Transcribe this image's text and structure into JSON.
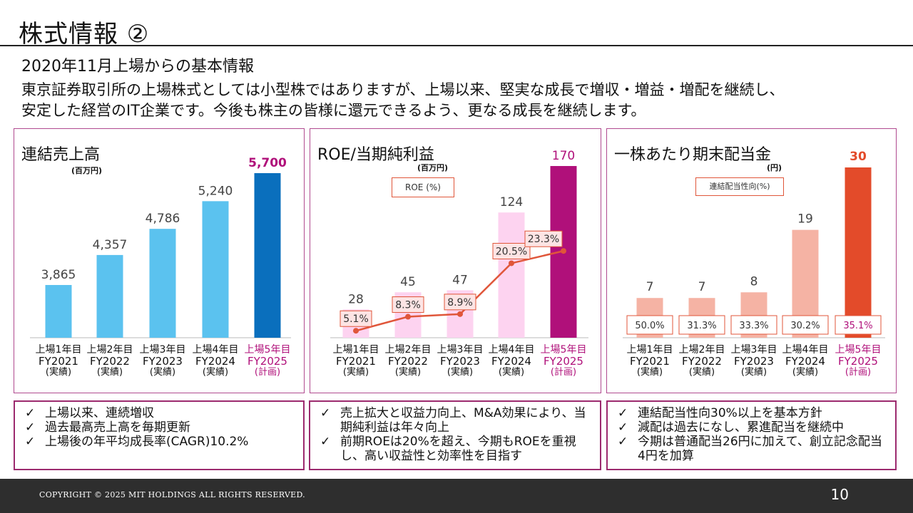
{
  "slide": {
    "title": "株式情報 ②",
    "subtitle": "2020年11月上場からの基本情報",
    "description_line1": "東京証券取引所の上場株式としては小型株ではありますが、上場以来、堅実な成長で増収・増益・増配を継続し、",
    "description_line2": "安定した経営のIT企業です。今後も株主の皆様に還元できるよう、更なる成長を継続します。"
  },
  "chart_data": [
    {
      "type": "bar",
      "title": "連結売上高",
      "unit": "(百万円)",
      "categories": [
        [
          "上場1年目",
          "FY2021",
          "(実績)"
        ],
        [
          "上場2年目",
          "FY2022",
          "(実績)"
        ],
        [
          "上場3年目",
          "FY2023",
          "(実績)"
        ],
        [
          "上場4年目",
          "FY2024",
          "(実績)"
        ],
        [
          "上場5年目",
          "FY2025",
          "(計画)"
        ]
      ],
      "values": [
        3865,
        4357,
        4786,
        5240,
        5700
      ],
      "labels": [
        "3,865",
        "4,357",
        "4,786",
        "5,240",
        "5,700"
      ],
      "colors": [
        "#5bc2ef",
        "#5bc2ef",
        "#5bc2ef",
        "#5bc2ef",
        "#0a6fbd"
      ],
      "ymin": 3000,
      "ymax": 5700
    },
    {
      "type": "bar+line",
      "title": "ROE/当期純利益",
      "unit": "(百万円)",
      "legend_label": "ROE (%)",
      "categories": [
        [
          "上場1年目",
          "FY2021",
          "(実績)"
        ],
        [
          "上場2年目",
          "FY2022",
          "(実績)"
        ],
        [
          "上場3年目",
          "FY2023",
          "(実績)"
        ],
        [
          "上場4年目",
          "FY2024",
          "(実績)"
        ],
        [
          "上場5年目",
          "FY2025",
          "(計画)"
        ]
      ],
      "values": [
        28,
        45,
        47,
        124,
        170
      ],
      "labels": [
        "28",
        "45",
        "47",
        "124",
        "170"
      ],
      "colors": [
        "#fdd3f0",
        "#fdd3f0",
        "#fdd3f0",
        "#fdd3f0",
        "#b0107a"
      ],
      "line_values": [
        5.1,
        8.3,
        8.9,
        20.5,
        23.3
      ],
      "line_labels": [
        "5.1%",
        "8.3%",
        "8.9%",
        "20.5%",
        "23.3%"
      ],
      "line_color": "#e0563a",
      "line_ymin": 4,
      "line_ymax": 30
    },
    {
      "type": "bar",
      "title": "一株あたり期末配当金",
      "unit": "(円)",
      "legend_label": "連結配当性向(%)",
      "categories": [
        [
          "上場1年目",
          "FY2021",
          "(実績)"
        ],
        [
          "上場2年目",
          "FY2022",
          "(実績)"
        ],
        [
          "上場3年目",
          "FY2023",
          "(実績)"
        ],
        [
          "上場4年目",
          "FY2024",
          "(実績)"
        ],
        [
          "上場5年目",
          "FY2025",
          "(計画)"
        ]
      ],
      "values": [
        7,
        7,
        8,
        19,
        30
      ],
      "labels": [
        "7",
        "7",
        "8",
        "19",
        "30"
      ],
      "colors": [
        "#f5b3a4",
        "#f5b3a4",
        "#f5b3a4",
        "#f5b3a4",
        "#e34b2a"
      ],
      "payout_ratios": [
        "50.0%",
        "31.3%",
        "33.3%",
        "30.2%",
        "35.1%"
      ]
    }
  ],
  "notes": [
    [
      "上場以来、連続増収",
      "過去最高売上高を毎期更新",
      "上場後の年平均成長率(CAGR)10.2%"
    ],
    [
      "売上拡大と収益力向上、M&A効果により、当期純利益は年々向上",
      "前期ROEは20%を超え、今期もROEを重視し、高い収益性と効率性を目指す"
    ],
    [
      "連結配当性向30%以上を基本方針",
      "減配は過去になし、累進配当を継続中",
      "今期は普通配当26円に加えて、創立記念配当4円を加算"
    ]
  ],
  "check_mark": "✓",
  "footer": {
    "copyright": "COPYRIGHT © 2025 MIT HOLDINGS ALL RIGHTS RESERVED.",
    "page_number": "10"
  }
}
